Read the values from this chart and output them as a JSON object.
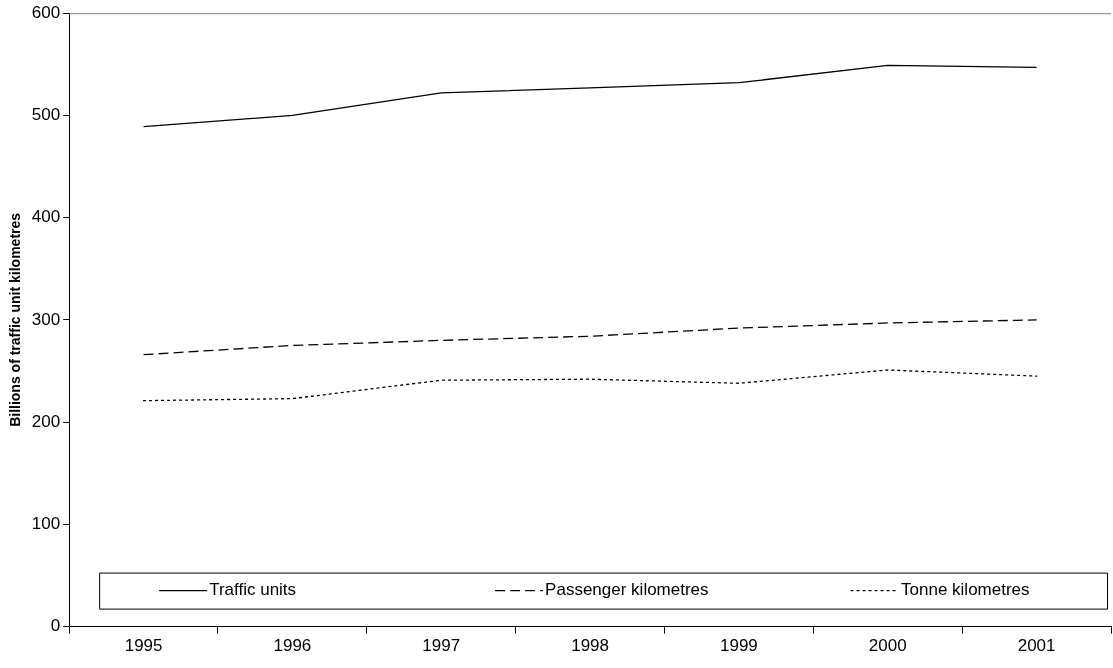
{
  "chart_data": {
    "type": "line",
    "ylabel": "Billions of traffic unit kilometres",
    "categories": [
      "1995",
      "1996",
      "1997",
      "1998",
      "1999",
      "2000",
      "2001"
    ],
    "series": [
      {
        "name": "Traffic units",
        "color": "#000000",
        "line_style": "solid",
        "values": [
          489,
          500,
          522,
          527,
          532,
          549,
          547
        ]
      },
      {
        "name": "Passenger kilometres",
        "color": "#000000",
        "line_style": "dashed",
        "values": [
          266,
          275,
          280,
          284,
          292,
          297,
          300
        ]
      },
      {
        "name": "Tonne kilometres",
        "color": "#000000",
        "line_style": "dotted",
        "values": [
          221,
          223,
          241,
          242,
          238,
          251,
          245
        ]
      }
    ],
    "ylim": [
      0,
      600
    ],
    "yticks": [
      0,
      100,
      200,
      300,
      400,
      500,
      600
    ],
    "grid": false,
    "legend": "bottom",
    "marker": "none"
  }
}
